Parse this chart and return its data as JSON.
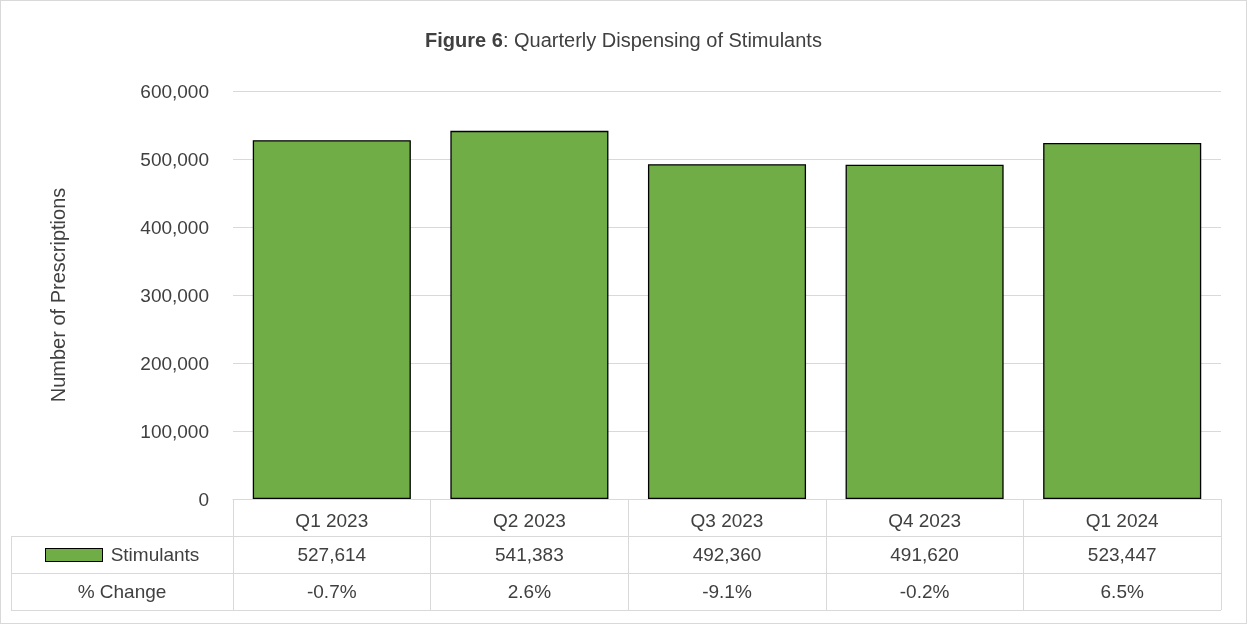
{
  "chart_data": {
    "type": "bar",
    "title": "Figure 6: Quarterly Dispensing of Stimulants",
    "ylabel": "Number of Prescriptions",
    "categories": [
      "Q1 2023",
      "Q2 2023",
      "Q3 2023",
      "Q4 2023",
      "Q1 2024"
    ],
    "series": [
      {
        "name": "Stimulants",
        "color": "#70ad47",
        "values": [
          527614,
          541383,
          492360,
          491620,
          523447
        ],
        "value_labels": [
          "527,614",
          "541,383",
          "492,360",
          "491,620",
          "523,447"
        ]
      }
    ],
    "ylim": [
      0,
      600000
    ],
    "yticks": [
      0,
      {
        "value": 100000,
        "label": "100,000"
      },
      {
        "value": 200000,
        "label": "200,000"
      },
      {
        "value": 300000,
        "label": "300,000"
      },
      {
        "value": 400000,
        "label": "400,000"
      },
      {
        "value": 500000,
        "label": "500,000"
      },
      {
        "value": 600000,
        "label": "600,000"
      }
    ],
    "grid": "y",
    "legend": "bottom",
    "annotations": [
      "% Change",
      "-0.7%",
      "2.6%",
      "-9.1%",
      "-0.2%",
      "6.5%"
    ]
  }
}
